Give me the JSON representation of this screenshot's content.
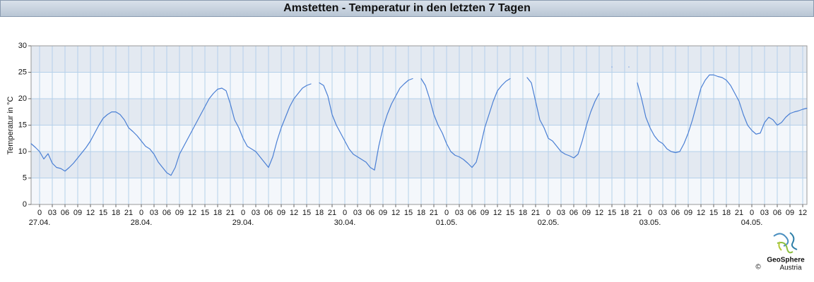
{
  "chart_data": {
    "type": "line",
    "title": "Amstetten - Temperatur in den letzten 7 Tagen",
    "y_label": "Temperatur in °C",
    "ylim": [
      0,
      30
    ],
    "yticks": [
      0,
      5,
      10,
      15,
      20,
      25,
      30
    ],
    "xlim": [
      -2,
      181
    ],
    "xticks": [
      0,
      {
        "value": 3,
        "label": "03"
      },
      {
        "value": 6,
        "label": "06"
      },
      {
        "value": 9,
        "label": "09"
      },
      12,
      15,
      18,
      21,
      {
        "value": 24,
        "label": "0"
      },
      {
        "value": 27,
        "label": "03"
      },
      {
        "value": 30,
        "label": "06"
      },
      {
        "value": 33,
        "label": "09"
      },
      {
        "value": 36,
        "label": "12"
      },
      {
        "value": 39,
        "label": "15"
      },
      {
        "value": 42,
        "label": "18"
      },
      {
        "value": 45,
        "label": "21"
      },
      {
        "value": 48,
        "label": "0"
      },
      {
        "value": 51,
        "label": "03"
      },
      {
        "value": 54,
        "label": "06"
      },
      {
        "value": 57,
        "label": "09"
      },
      {
        "value": 60,
        "label": "12"
      },
      {
        "value": 63,
        "label": "15"
      },
      {
        "value": 66,
        "label": "18"
      },
      {
        "value": 69,
        "label": "21"
      },
      {
        "value": 72,
        "label": "0"
      },
      {
        "value": 75,
        "label": "03"
      },
      {
        "value": 78,
        "label": "06"
      },
      {
        "value": 81,
        "label": "09"
      },
      {
        "value": 84,
        "label": "12"
      },
      {
        "value": 87,
        "label": "15"
      },
      {
        "value": 90,
        "label": "18"
      },
      {
        "value": 93,
        "label": "21"
      },
      {
        "value": 96,
        "label": "0"
      },
      {
        "value": 99,
        "label": "03"
      },
      {
        "value": 102,
        "label": "06"
      },
      {
        "value": 105,
        "label": "09"
      },
      {
        "value": 108,
        "label": "12"
      },
      {
        "value": 111,
        "label": "15"
      },
      {
        "value": 114,
        "label": "18"
      },
      {
        "value": 117,
        "label": "21"
      },
      {
        "value": 120,
        "label": "0"
      },
      {
        "value": 123,
        "label": "03"
      },
      {
        "value": 126,
        "label": "06"
      },
      {
        "value": 129,
        "label": "09"
      },
      {
        "value": 132,
        "label": "12"
      },
      {
        "value": 135,
        "label": "15"
      },
      {
        "value": 138,
        "label": "18"
      },
      {
        "value": 141,
        "label": "21"
      },
      {
        "value": 144,
        "label": "0"
      },
      {
        "value": 147,
        "label": "03"
      },
      {
        "value": 150,
        "label": "06"
      },
      {
        "value": 153,
        "label": "09"
      },
      {
        "value": 156,
        "label": "12"
      },
      {
        "value": 159,
        "label": "15"
      },
      {
        "value": 162,
        "label": "18"
      },
      {
        "value": 165,
        "label": "21"
      },
      {
        "value": 168,
        "label": "0"
      },
      {
        "value": 171,
        "label": "03"
      },
      {
        "value": 174,
        "label": "06"
      },
      {
        "value": 177,
        "label": "09"
      },
      {
        "value": 180,
        "label": "12"
      }
    ],
    "date_labels": [
      {
        "value": 0,
        "label": "27.04."
      },
      {
        "value": 24,
        "label": "28.04."
      },
      {
        "value": 48,
        "label": "29.04."
      },
      {
        "value": 72,
        "label": "30.04."
      },
      {
        "value": 96,
        "label": "01.05."
      },
      {
        "value": 120,
        "label": "02.05."
      },
      {
        "value": 144,
        "label": "03.05."
      },
      {
        "value": 168,
        "label": "04.05."
      }
    ],
    "grid": true,
    "series": [
      {
        "color": "#4a7fd4",
        "x": [
          -2,
          -1,
          0,
          1,
          2,
          3,
          4,
          5,
          6,
          7,
          8,
          9,
          10,
          11,
          12,
          13,
          14,
          15,
          16,
          17,
          18,
          19,
          20,
          21,
          22,
          23,
          24,
          25,
          26,
          27,
          28,
          29,
          30,
          31,
          32,
          33,
          34,
          35,
          36,
          37,
          38,
          39,
          40,
          41,
          42,
          43,
          44,
          45,
          46,
          47,
          48,
          49,
          50,
          51,
          52,
          53,
          54,
          55,
          56,
          57,
          58,
          59,
          60,
          61,
          62,
          63,
          64,
          65,
          66,
          67,
          68,
          69,
          70,
          71,
          72,
          73,
          74,
          75,
          76,
          77,
          78,
          79,
          80,
          81,
          82,
          83,
          84,
          85,
          86,
          87,
          88,
          89,
          90,
          91,
          92,
          93,
          94,
          95,
          96,
          97,
          98,
          99,
          100,
          101,
          102,
          103,
          104,
          105,
          106,
          107,
          108,
          109,
          110,
          111,
          112,
          113,
          114,
          115,
          116,
          117,
          118,
          119,
          120,
          121,
          122,
          123,
          124,
          125,
          126,
          127,
          128,
          129,
          130,
          131,
          132,
          133,
          134,
          135,
          136,
          137,
          138,
          139,
          140,
          141,
          142,
          143,
          144,
          145,
          146,
          147,
          148,
          149,
          150,
          151,
          152,
          153,
          154,
          155,
          156,
          157,
          158,
          159,
          160,
          161,
          162,
          163,
          164,
          165,
          166,
          167,
          168,
          169,
          170,
          171,
          172,
          173,
          174,
          175,
          176,
          177,
          178,
          179,
          180,
          181
        ],
        "values": [
          11.5,
          10.8,
          10,
          8.6,
          9.6,
          7.8,
          7,
          6.8,
          6.3,
          7,
          7.8,
          8.8,
          9.8,
          10.8,
          12,
          13.5,
          15,
          16.3,
          17,
          17.5,
          17.5,
          17,
          16,
          14.5,
          13.8,
          13,
          12,
          11,
          10.5,
          9.5,
          8,
          7,
          6,
          5.5,
          7,
          9.5,
          11,
          12.5,
          14,
          15.5,
          17,
          18.5,
          20,
          21,
          21.8,
          22,
          21.5,
          19,
          16,
          14.5,
          12.5,
          11,
          10.5,
          10,
          9,
          8,
          7,
          9,
          12,
          14.5,
          16.5,
          18.5,
          20,
          21,
          22,
          22.5,
          22.8,
          null,
          23,
          22.5,
          20.5,
          17,
          15,
          13.5,
          12,
          10.5,
          9.5,
          9,
          8.5,
          8,
          7,
          6.5,
          11,
          14.5,
          17,
          19,
          20.5,
          22,
          22.8,
          23.5,
          23.8,
          null,
          23.8,
          22.5,
          20,
          17,
          15,
          13.5,
          11.5,
          10,
          9.3,
          9,
          8.5,
          7.8,
          7,
          8,
          11,
          14.5,
          17,
          19.5,
          21.5,
          22.5,
          23.3,
          23.8,
          null,
          null,
          null,
          24,
          23,
          19.5,
          16,
          14.5,
          12.5,
          12,
          11,
          10,
          9.5,
          9.2,
          8.8,
          9.5,
          12,
          15,
          17.5,
          19.5,
          21,
          null,
          null,
          26,
          null,
          null,
          null,
          26,
          null,
          23,
          20,
          16.5,
          14.5,
          13,
          12,
          11.5,
          10.5,
          10,
          9.8,
          10,
          11.5,
          13.5,
          16,
          19,
          22,
          23.5,
          24.5,
          24.5,
          24.2,
          24,
          23.5,
          22.5,
          21,
          19.5,
          17,
          15,
          14,
          13.3,
          13.5,
          15.5,
          16.5,
          16,
          15,
          15.5,
          16.5,
          17.2,
          17.5,
          17.7,
          18,
          18.2
        ]
      }
    ]
  },
  "logo": {
    "name": "GeoSphere",
    "copyright": "©",
    "sub": "Austria"
  }
}
